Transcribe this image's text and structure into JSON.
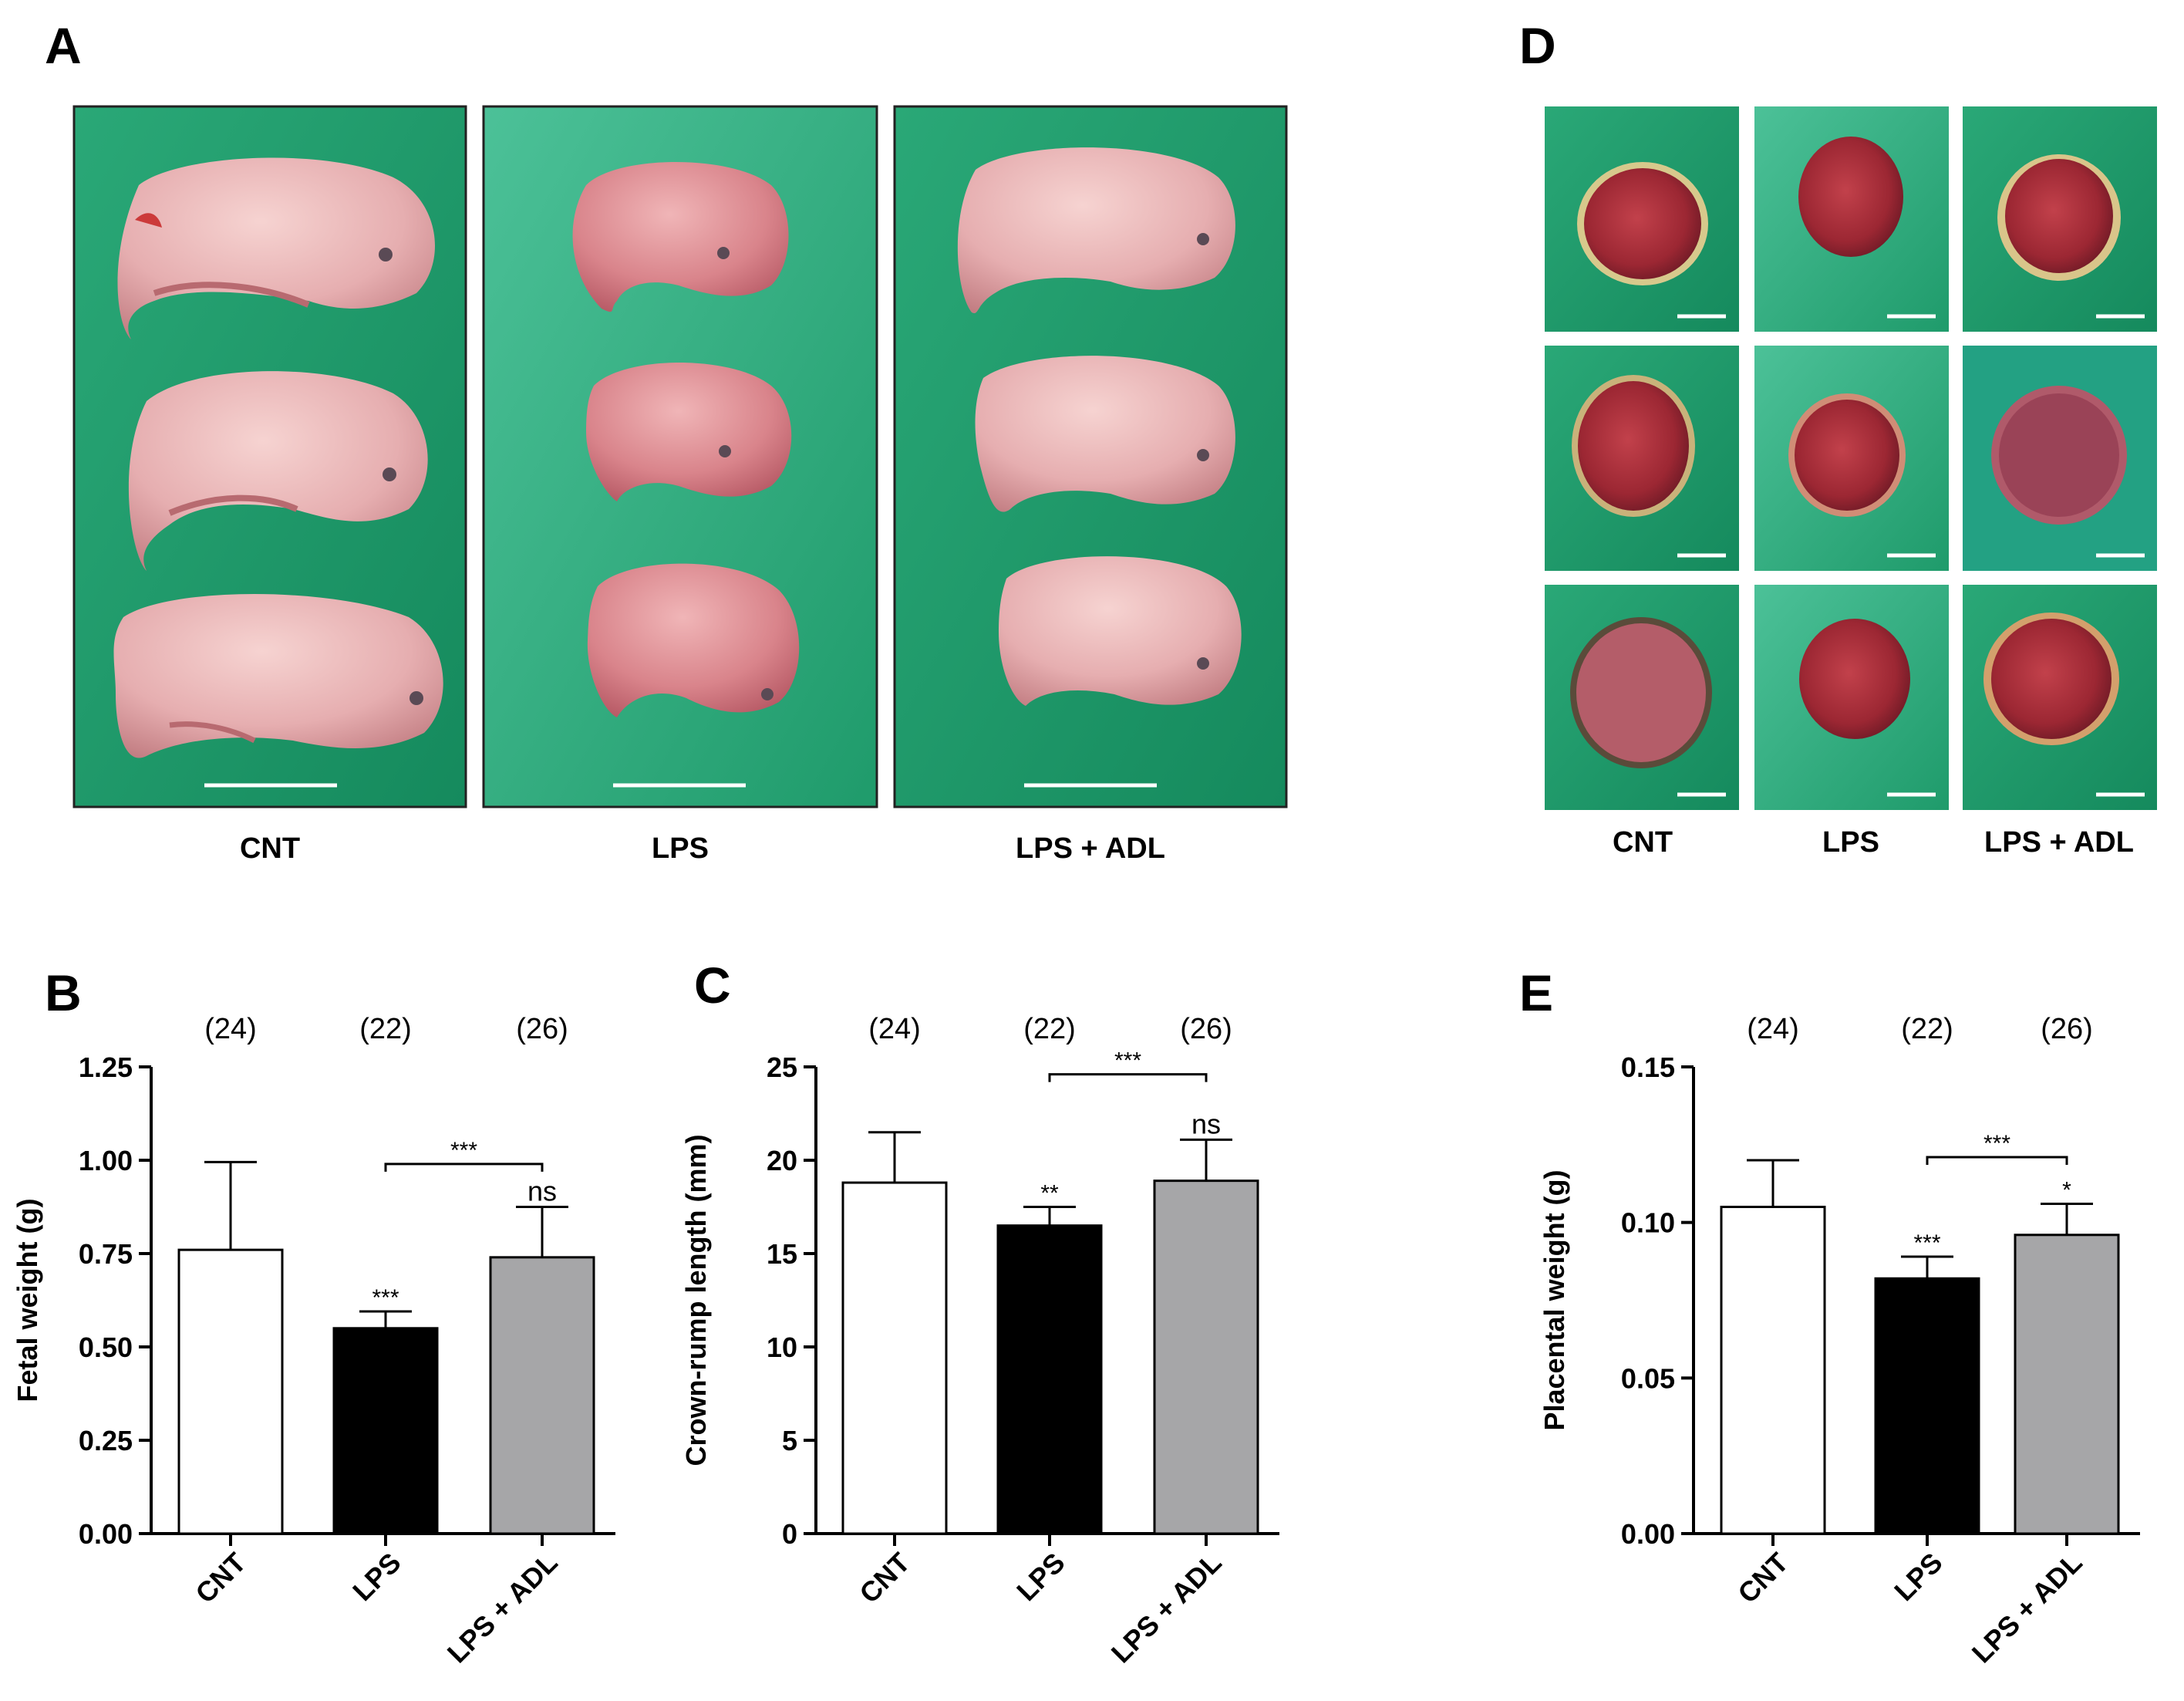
{
  "panels": {
    "A": {
      "letter": "A",
      "labels": [
        "CNT",
        "LPS",
        "LPS + ADL"
      ]
    },
    "D": {
      "letter": "D",
      "labels": [
        "CNT",
        "LPS",
        "LPS + ADL"
      ]
    }
  },
  "colors": {
    "drape": "#1f9b6b",
    "drape_light": "#3bb98a",
    "fetus": "#e9b4b4",
    "fetus_shade": "#c98585",
    "placenta": "#a8323a",
    "placenta_core": "#7e1f2c",
    "bar_cnt": "#ffffff",
    "bar_lps": "#000000",
    "bar_adl": "#a6a6a8"
  },
  "chart_data": [
    {
      "panel": "B",
      "type": "bar",
      "title": "",
      "xlabel": "",
      "ylabel": "Fetal weight (g)",
      "categories": [
        "CNT",
        "LPS",
        "LPS + ADL"
      ],
      "values": [
        0.76,
        0.55,
        0.74
      ],
      "errors": [
        0.235,
        0.045,
        0.135
      ],
      "n_labels": [
        "(24)",
        "(22)",
        "(26)"
      ],
      "bar_marks": [
        "",
        "***",
        "ns"
      ],
      "bracket": {
        "from": 1,
        "to": 2,
        "label": "***",
        "y": 0.99
      },
      "ylim": [
        0,
        1.25
      ],
      "yticks": [
        0,
        0.25,
        0.5,
        0.75,
        1.0,
        1.25
      ],
      "ytick_labels": [
        "0.00",
        "0.25",
        "0.50",
        "0.75",
        "1.00",
        "1.25"
      ]
    },
    {
      "panel": "C",
      "type": "bar",
      "title": "",
      "xlabel": "",
      "ylabel": "Crown-rump length (mm)",
      "categories": [
        "CNT",
        "LPS",
        "LPS + ADL"
      ],
      "values": [
        18.8,
        16.5,
        18.9
      ],
      "errors": [
        2.7,
        1.0,
        2.2
      ],
      "n_labels": [
        "(24)",
        "(22)",
        "(26)"
      ],
      "bar_marks": [
        "",
        "**",
        "ns"
      ],
      "bracket": {
        "from": 1,
        "to": 2,
        "label": "***",
        "y": 24.6
      },
      "ylim": [
        0,
        25
      ],
      "yticks": [
        0,
        5,
        10,
        15,
        20,
        25
      ],
      "ytick_labels": [
        "0",
        "5",
        "10",
        "15",
        "20",
        "25"
      ]
    },
    {
      "panel": "E",
      "type": "bar",
      "title": "",
      "xlabel": "",
      "ylabel": "Placental weight (g)",
      "categories": [
        "CNT",
        "LPS",
        "LPS + ADL"
      ],
      "values": [
        0.105,
        0.082,
        0.096
      ],
      "errors": [
        0.015,
        0.007,
        0.01
      ],
      "n_labels": [
        "(24)",
        "(22)",
        "(26)"
      ],
      "bar_marks": [
        "",
        "***",
        "*"
      ],
      "bracket": {
        "from": 1,
        "to": 2,
        "label": "***",
        "y": 0.121
      },
      "ylim": [
        0,
        0.15
      ],
      "yticks": [
        0,
        0.05,
        0.1,
        0.15
      ],
      "ytick_labels": [
        "0.00",
        "0.05",
        "0.10",
        "0.15"
      ]
    }
  ]
}
